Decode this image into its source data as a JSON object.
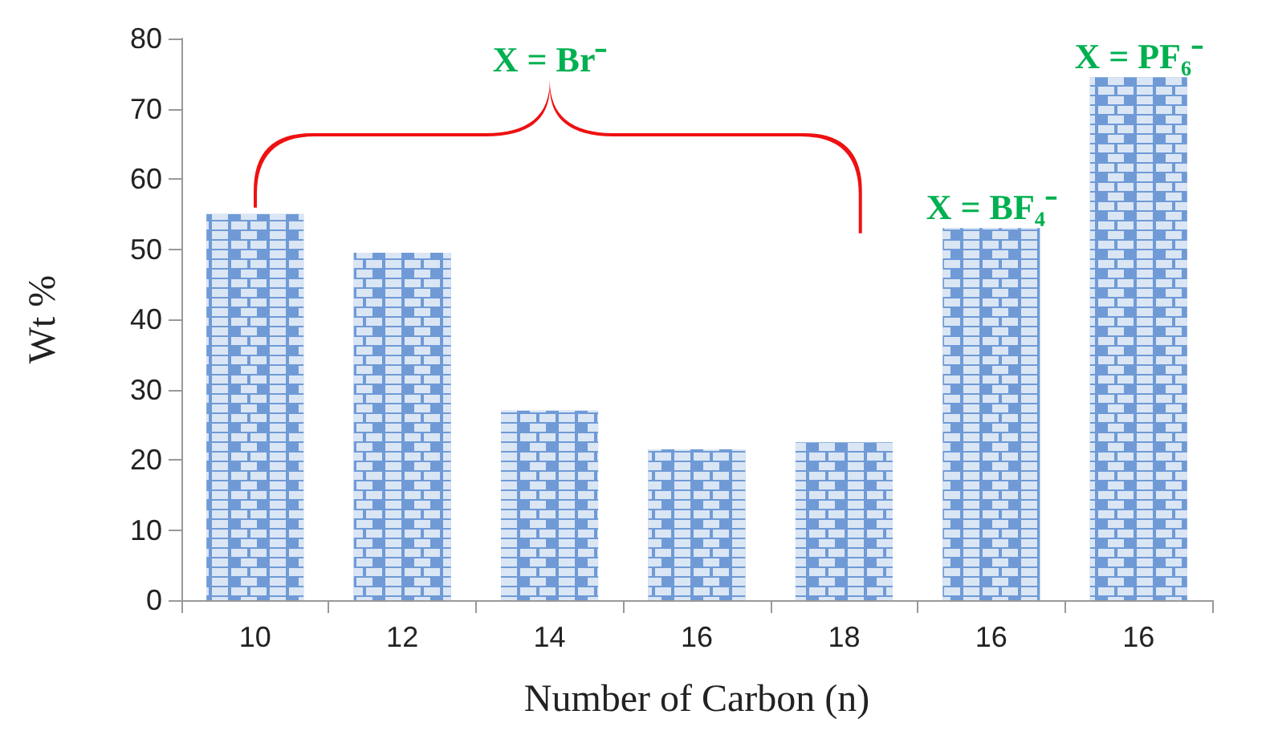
{
  "chart_data": {
    "type": "bar",
    "xlabel": "Number of Carbon (n)",
    "ylabel": "Wt %",
    "categories": [
      "10",
      "12",
      "14",
      "16",
      "18",
      "16",
      "16"
    ],
    "values": [
      55,
      49.5,
      27,
      21.5,
      22.5,
      53,
      74.5
    ],
    "value_labels": [
      null,
      null,
      null,
      null,
      null,
      "X = BF₄⁻",
      "X = PF₆⁻"
    ],
    "color": "#6f9ad6",
    "ylim": [
      0,
      80
    ],
    "yticks": [
      0,
      10,
      20,
      30,
      40,
      50,
      60,
      70,
      80
    ],
    "grid": false,
    "annotations": [
      "X = Br⁻"
    ]
  }
}
